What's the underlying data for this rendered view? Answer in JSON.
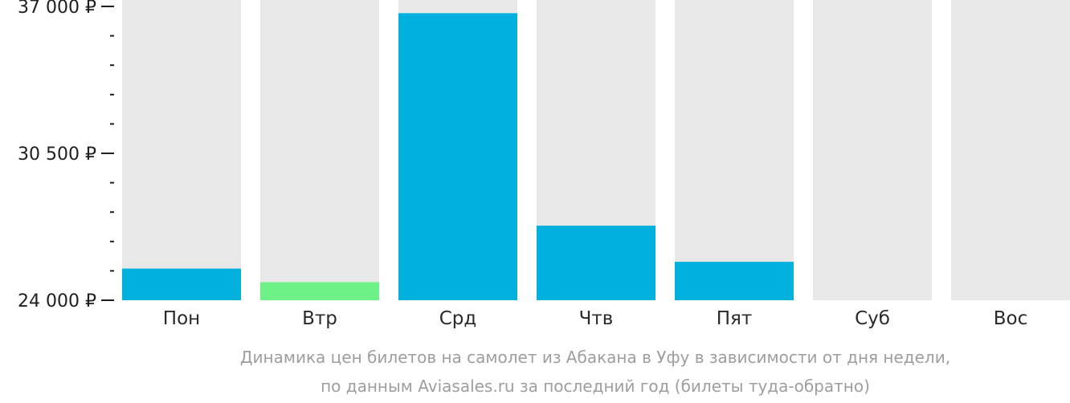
{
  "chart_data": {
    "type": "bar",
    "categories": [
      "Пон",
      "Втр",
      "Срд",
      "Чтв",
      "Пят",
      "Суб",
      "Вос"
    ],
    "values": [
      25400,
      24800,
      36700,
      27300,
      25700,
      null,
      null
    ],
    "highlight_index": 1,
    "ylim": [
      24000,
      37000
    ],
    "y_ticks": [
      {
        "value": 37000,
        "label": "37 000 ₽"
      },
      {
        "value": 30500,
        "label": "30 500 ₽"
      },
      {
        "value": 24000,
        "label": "24 000 ₽"
      }
    ],
    "minor_tick_step": 1300,
    "caption": [
      "Динамика цен билетов на самолет из Абакана в Уфу в зависимости от дня недели,",
      "по данным Aviasales.ru за последний год (билеты туда-обратно)"
    ],
    "colors": {
      "bar": "#00b0dd",
      "highlight": "#6ef187",
      "background_bar": "#e8e8e8",
      "axis": "#1f1f1f"
    }
  }
}
